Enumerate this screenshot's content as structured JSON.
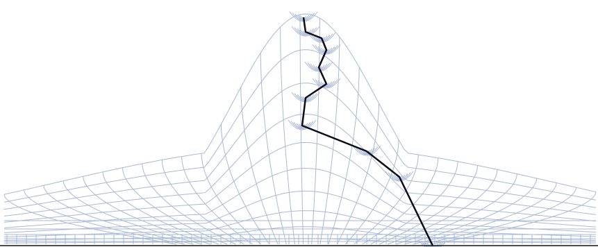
{
  "figure": {
    "kind": "mesh-diagram",
    "colors": {
      "background": "#ffffff",
      "mesh_line": "#a9b9d4",
      "path_line": "#0d0d1a",
      "baseline": "#111111"
    }
  }
}
